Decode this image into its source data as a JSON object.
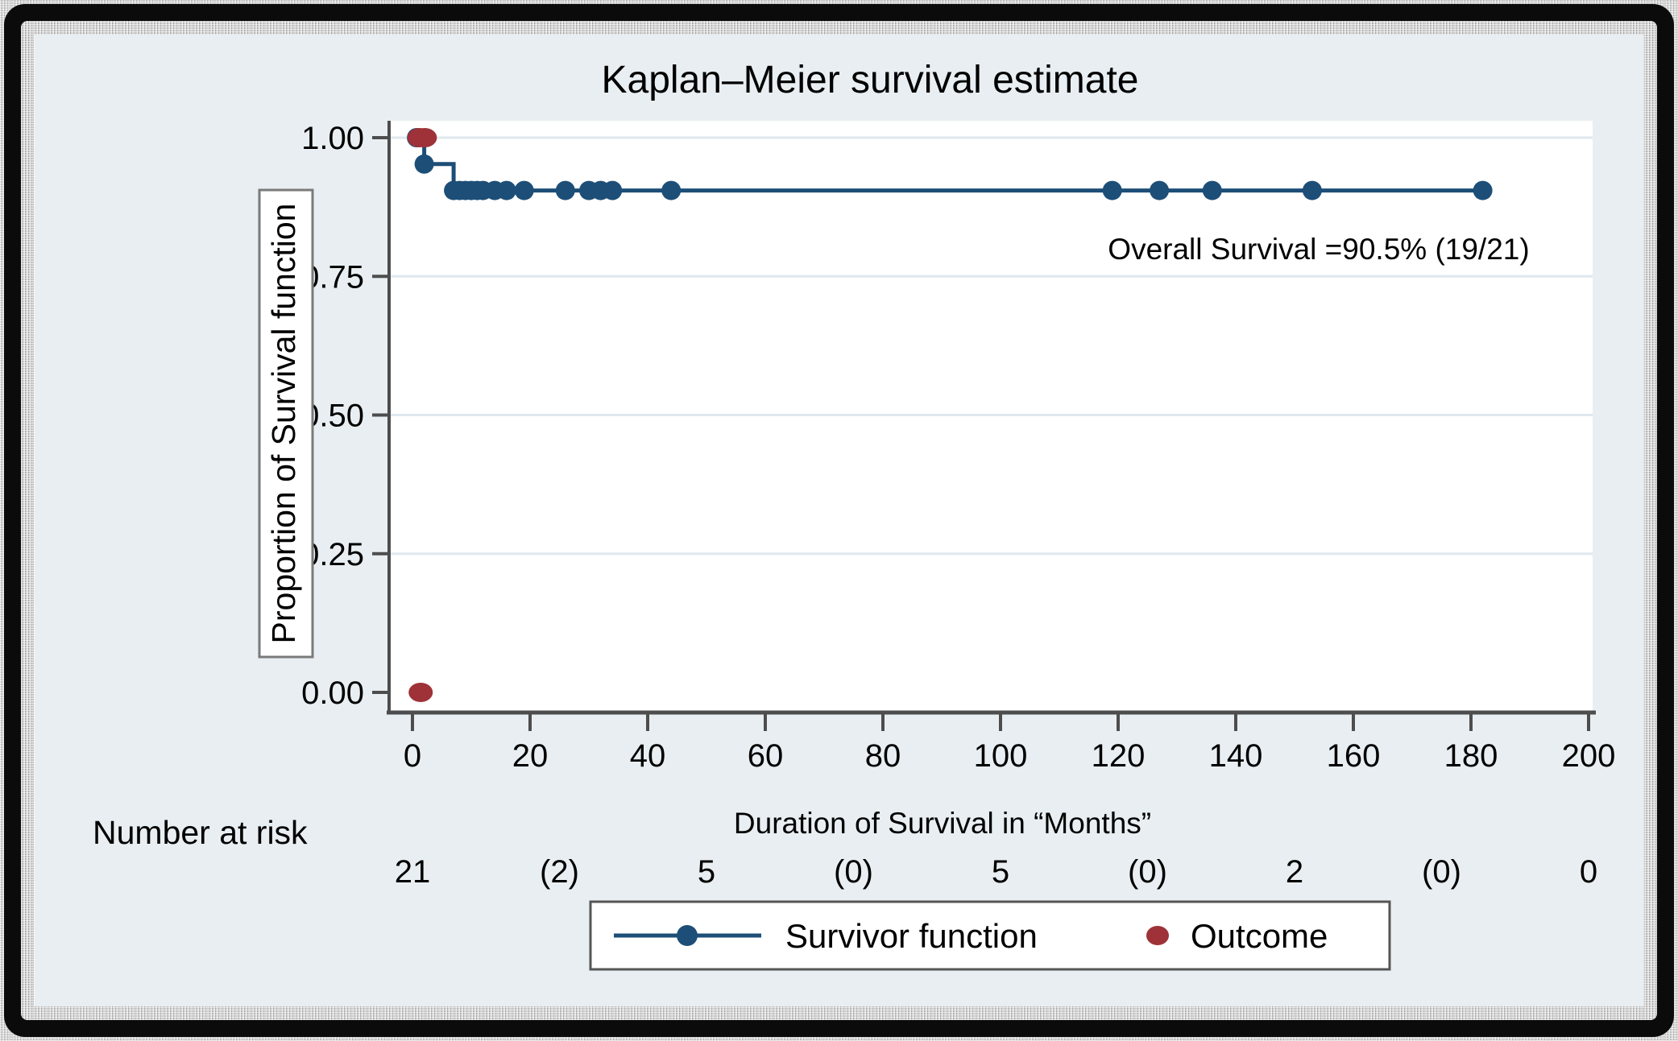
{
  "chart_data": {
    "type": "line",
    "subtype": "kaplan-meier-step",
    "title": "Kaplan–Meier survival estimate",
    "xlabel": "Duration of Survival in “Months”",
    "ylabel": "Proportion of Survival function",
    "annotation": "Overall Survival  =90.5% (19/21)",
    "xlim": [
      0,
      205
    ],
    "ylim": [
      0,
      1
    ],
    "xticks": [
      0,
      20,
      40,
      60,
      80,
      100,
      120,
      140,
      160,
      180,
      200
    ],
    "yticks": [
      0,
      0.25,
      0.5,
      0.75,
      1
    ],
    "grid": "horizontal",
    "legend_position": "bottom-center",
    "series": [
      {
        "name": "Survivor function",
        "color": "#1d4e77",
        "steps": [
          [
            0,
            1.0
          ],
          [
            2,
            1.0
          ],
          [
            2,
            0.9524
          ],
          [
            7,
            0.9524
          ],
          [
            7,
            0.9048
          ],
          [
            182,
            0.9048
          ]
        ],
        "markers": [
          [
            0.7,
            1.0
          ],
          [
            2,
            0.9524
          ],
          [
            7,
            0.9048
          ],
          [
            8,
            0.9048
          ],
          [
            9,
            0.9048
          ],
          [
            10,
            0.9048
          ],
          [
            11,
            0.9048
          ],
          [
            12,
            0.9048
          ],
          [
            14,
            0.9048
          ],
          [
            16,
            0.9048
          ],
          [
            19,
            0.9048
          ],
          [
            26,
            0.9048
          ],
          [
            30,
            0.9048
          ],
          [
            32,
            0.9048
          ],
          [
            34,
            0.9048
          ],
          [
            44,
            0.9048
          ],
          [
            119,
            0.9048
          ],
          [
            127,
            0.9048
          ],
          [
            136,
            0.9048
          ],
          [
            153,
            0.9048
          ],
          [
            182,
            0.9048
          ]
        ]
      },
      {
        "name": "Outcome",
        "color": "#9e3238",
        "markers": [
          [
            1.2,
            1.0
          ],
          [
            2.1,
            1.0
          ],
          [
            1.4,
            0.0
          ]
        ]
      }
    ],
    "risk_table": {
      "label": "Number at risk",
      "times": [
        0,
        25,
        50,
        75,
        100,
        125,
        150,
        175,
        200
      ],
      "values": [
        "21",
        "(2)",
        "5",
        "(0)",
        "5",
        "(0)",
        "2",
        "(0)",
        "0"
      ]
    },
    "legend": {
      "entries": [
        "Survivor function",
        "Outcome"
      ]
    }
  },
  "colors": {
    "panel_background": "#e8eef1",
    "plot_background": "#ffffff",
    "gridline": "#dfe8ee",
    "axis": "#4d4d4d",
    "survivor_blue": "#1d4e77",
    "outcome_red": "#9e3238",
    "frame_black": "#0b0b0b"
  }
}
